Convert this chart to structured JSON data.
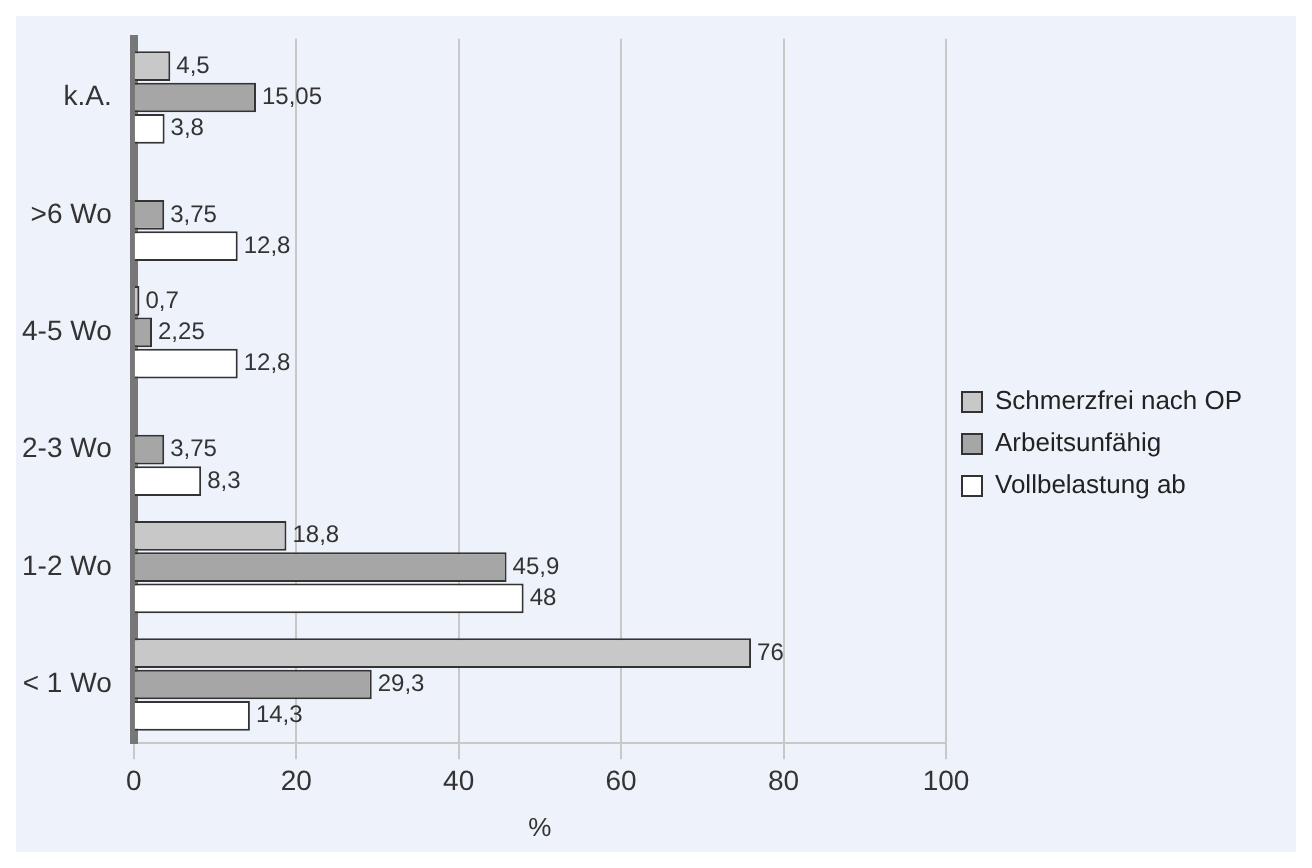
{
  "chart_data": {
    "type": "bar",
    "orientation": "horizontal",
    "xlabel": "%",
    "categories": [
      "k.A.",
      ">6 Wo",
      "4-5 Wo",
      "2-3 Wo",
      "1-2 Wo",
      "< 1 Wo"
    ],
    "series": [
      {
        "name": "Schmerzfrei nach OP",
        "color": "#c8c8c8",
        "values": [
          4.5,
          null,
          0.7,
          null,
          18.8,
          76
        ],
        "value_labels": [
          "4,5",
          null,
          "0,7",
          null,
          "18,8",
          "76"
        ]
      },
      {
        "name": "Arbeitsunfähig",
        "color": "#a6a6a6",
        "values": [
          15.05,
          3.75,
          2.25,
          3.75,
          45.9,
          29.3
        ],
        "value_labels": [
          "15,05",
          "3,75",
          "2,25",
          "3,75",
          "45,9",
          "29,3"
        ]
      },
      {
        "name": "Vollbelastung ab",
        "color": "#ffffff",
        "values": [
          3.8,
          12.8,
          12.8,
          8.3,
          48,
          14.3
        ],
        "value_labels": [
          "3,8",
          "12,8",
          "12,8",
          "8,3",
          "48",
          "14,3"
        ]
      }
    ],
    "xlim": [
      0,
      100
    ],
    "xticks": [
      0,
      20,
      40,
      60,
      80,
      100
    ],
    "grid": "x",
    "legend": "right"
  }
}
